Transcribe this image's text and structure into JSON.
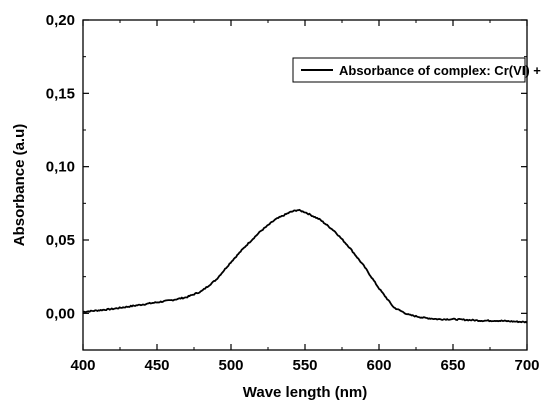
{
  "chart_data": {
    "type": "line",
    "title": "",
    "xlabel": "Wave length (nm)",
    "ylabel": "Absorbance (a.u)",
    "xlim": [
      400,
      700
    ],
    "ylim": [
      -0.025,
      0.2
    ],
    "x_ticks": [
      400,
      450,
      500,
      550,
      600,
      650,
      700
    ],
    "x_tick_labels": [
      "400",
      "450",
      "500",
      "550",
      "600",
      "650",
      "700"
    ],
    "y_ticks": [
      0.0,
      0.05,
      0.1,
      0.15,
      0.2
    ],
    "y_tick_labels": [
      "0,00",
      "0,05",
      "0,10",
      "0,15",
      "0,20"
    ],
    "grid": false,
    "legend_position": "top-right",
    "series": [
      {
        "name": "Absorbance of complex: Cr(VI) + DPC",
        "color": "#000000",
        "x": [
          400,
          410,
          420,
          430,
          440,
          450,
          460,
          470,
          480,
          490,
          500,
          510,
          520,
          530,
          540,
          545,
          550,
          560,
          570,
          580,
          590,
          600,
          610,
          620,
          630,
          640,
          650,
          660,
          670,
          680,
          690,
          700
        ],
        "y": [
          0.001,
          0.002,
          0.003,
          0.0045,
          0.006,
          0.0075,
          0.009,
          0.011,
          0.015,
          0.023,
          0.035,
          0.046,
          0.056,
          0.064,
          0.069,
          0.0705,
          0.069,
          0.064,
          0.056,
          0.045,
          0.032,
          0.017,
          0.004,
          -0.001,
          -0.003,
          -0.004,
          -0.004,
          -0.0045,
          -0.005,
          -0.005,
          -0.0055,
          -0.006
        ]
      }
    ]
  }
}
